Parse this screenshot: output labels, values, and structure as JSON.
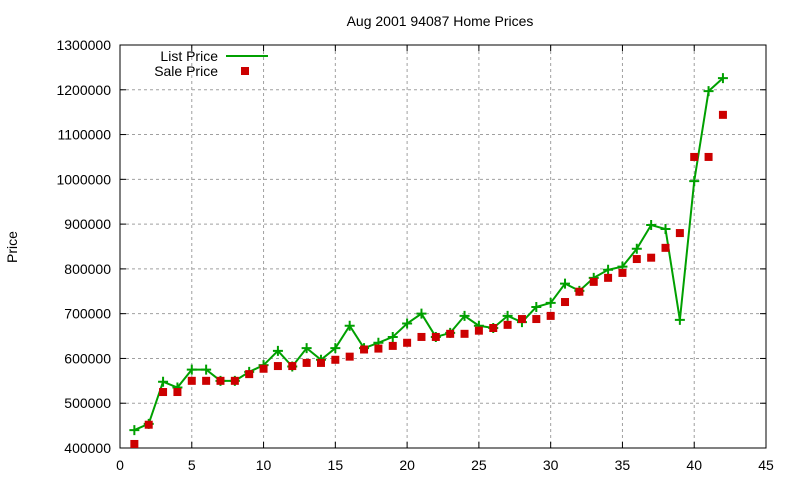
{
  "chart_data": {
    "type": "line",
    "title": "Aug 2001 94087 Home Prices",
    "xlabel": "",
    "ylabel": "Price",
    "xlim": [
      0,
      45
    ],
    "ylim": [
      400000,
      1300000
    ],
    "x_ticks": [
      0,
      5,
      10,
      15,
      20,
      25,
      30,
      35,
      40,
      45
    ],
    "y_ticks": [
      400000,
      500000,
      600000,
      700000,
      800000,
      900000,
      1000000,
      1100000,
      1200000,
      1300000
    ],
    "grid": true,
    "legend_position": "top-left",
    "x": [
      1,
      2,
      3,
      4,
      5,
      6,
      7,
      8,
      9,
      10,
      11,
      12,
      13,
      14,
      15,
      16,
      17,
      18,
      19,
      20,
      21,
      22,
      23,
      24,
      25,
      26,
      27,
      28,
      29,
      30,
      31,
      32,
      33,
      34,
      35,
      36,
      37,
      38,
      39,
      40,
      41,
      42
    ],
    "series": [
      {
        "name": "List Price",
        "style": "linespoints",
        "color": "#00a000",
        "values": [
          440000,
          454000,
          548000,
          535000,
          575000,
          575000,
          550000,
          550000,
          570000,
          585000,
          617000,
          582000,
          623000,
          597000,
          623000,
          673000,
          623000,
          635000,
          648000,
          678000,
          700000,
          648000,
          657000,
          695000,
          673000,
          668000,
          695000,
          681000,
          715000,
          724000,
          767000,
          751000,
          780000,
          798000,
          805000,
          845000,
          898000,
          889000,
          686000,
          996000,
          1197000,
          1226000
        ]
      },
      {
        "name": "Sale Price",
        "style": "points",
        "color": "#cc0000",
        "values": [
          409000,
          452000,
          525000,
          525000,
          550000,
          550000,
          550000,
          550000,
          565000,
          577000,
          583000,
          583000,
          590000,
          590000,
          597000,
          604000,
          620000,
          622000,
          628000,
          635000,
          648000,
          648000,
          655000,
          655000,
          662000,
          668000,
          675000,
          688000,
          688000,
          695000,
          726000,
          749000,
          771000,
          780000,
          791000,
          822000,
          825000,
          847000,
          880000,
          1050000,
          1050000,
          1144000
        ]
      }
    ]
  }
}
